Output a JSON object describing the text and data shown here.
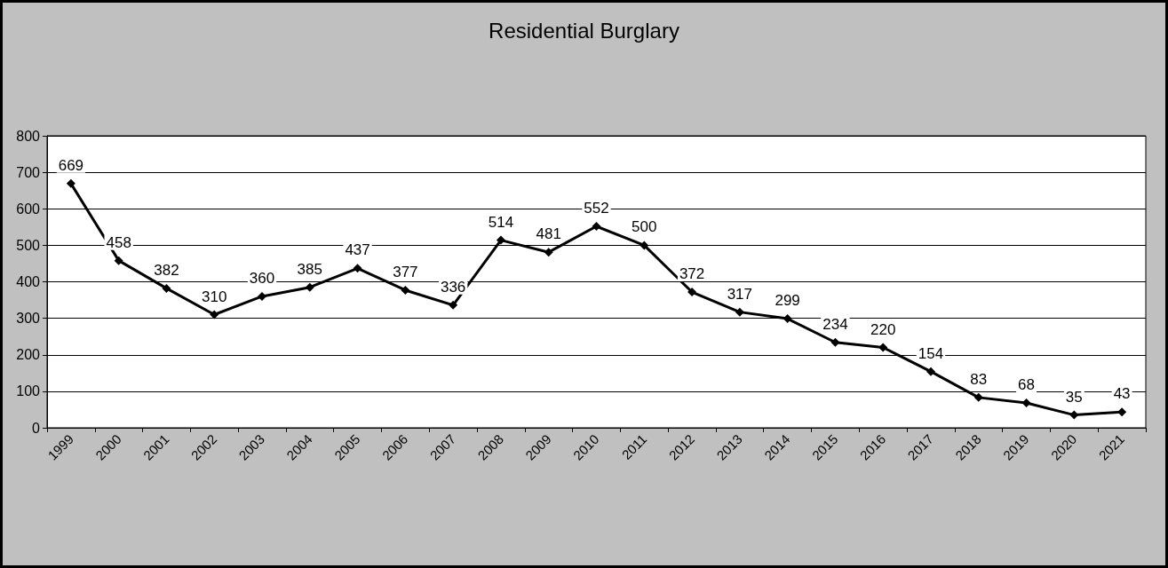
{
  "chart_data": {
    "type": "line",
    "title": "Residential Burglary",
    "categories": [
      "1999",
      "2000",
      "2001",
      "2002",
      "2003",
      "2004",
      "2005",
      "2006",
      "2007",
      "2008",
      "2009",
      "2010",
      "2011",
      "2012",
      "2013",
      "2014",
      "2015",
      "2016",
      "2017",
      "2018",
      "2019",
      "2020",
      "2021"
    ],
    "series": [
      {
        "color": "#000000",
        "values": [
          669,
          458,
          382,
          310,
          360,
          385,
          437,
          377,
          336,
          514,
          481,
          552,
          500,
          372,
          317,
          299,
          234,
          220,
          154,
          83,
          68,
          35,
          43
        ]
      }
    ],
    "ylim": [
      0,
      800
    ],
    "yticks": [
      0,
      100,
      200,
      300,
      400,
      500,
      600,
      700,
      800
    ],
    "grid": "y",
    "marker": "diamond",
    "line_style": "solid",
    "data_labels": true
  }
}
